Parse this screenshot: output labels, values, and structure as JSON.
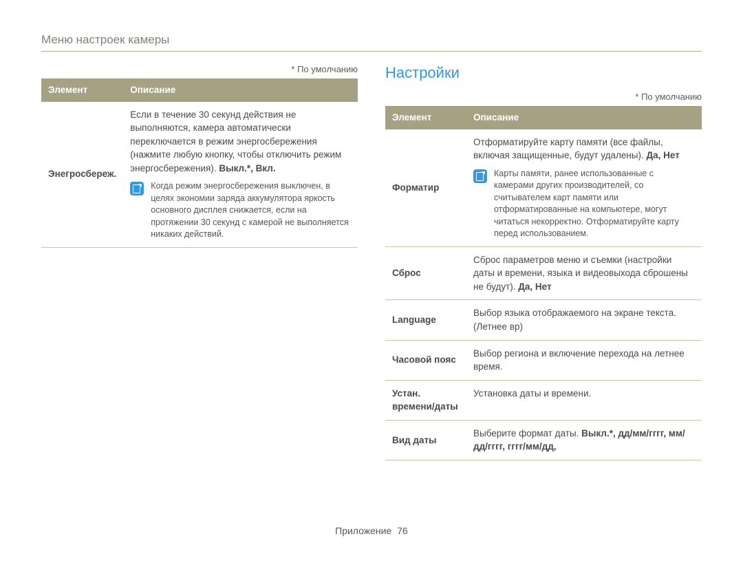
{
  "page": {
    "title": "Меню настроек камеры",
    "default_note": "* По умолчанию",
    "footer_label": "Приложение",
    "footer_page": "76"
  },
  "section": {
    "settings_title": "Настройки"
  },
  "left_table": {
    "header": {
      "element": "Элемент",
      "description": "Описание"
    },
    "rows": [
      {
        "name": "Энегросбереж.",
        "desc_main": "Если в течение 30 секунд действия не выполняются, камера автоматически переключается в режим энергосбережения (нажмите любую кнопку, чтобы отключить режим энергосбережения). ",
        "desc_bold": "Выкл.*, Вкл.",
        "note": "Когда режим энергосбережения выключен, в целях экономии заряда аккумулятора яркость основного дисплея снижается, если на протяжении 30 секунд с камерой не выполняется никаких действий."
      }
    ]
  },
  "right_table": {
    "header": {
      "element": "Элемент",
      "description": "Описание"
    },
    "rows": [
      {
        "name": "Форматир",
        "desc_main": "Отформатируйте карту памяти (все файлы, включая защищенные, будут удалены). ",
        "desc_bold": "Да, Нет",
        "note": "Карты памяти, ранее использованные с камерами других производителей, со считывателем карт памяти или отформатированные на компьютере, могут читаться некорректно. Отформатируйте карту перед использованием."
      },
      {
        "name": "Сброс",
        "desc_main": "Сброс параметров меню и съемки (настройки даты и времени, языка и видеовыхода сброшены не будут). ",
        "desc_bold": "Да, Нет"
      },
      {
        "name": "Language",
        "desc_main": "Выбор языка отображаемого на экране текста. (Летнее вр)"
      },
      {
        "name": "Часовой пояс",
        "desc_main": "Выбор региона и включение перехода на летнее время."
      },
      {
        "name": "Устан. времени/даты",
        "desc_main": "Установка даты и времени."
      },
      {
        "name": "Вид даты",
        "desc_main": "Выберите формат даты. ",
        "desc_bold": "Выкл.*, дд/мм/гггг, мм/дд/гггг, гггг/мм/дд, "
      }
    ]
  },
  "style": {
    "header_bg": "#a7a183",
    "header_fg": "#ffffff",
    "section_color": "#3399dd",
    "border_color": "#c9c4ac",
    "title_color": "#808076"
  }
}
